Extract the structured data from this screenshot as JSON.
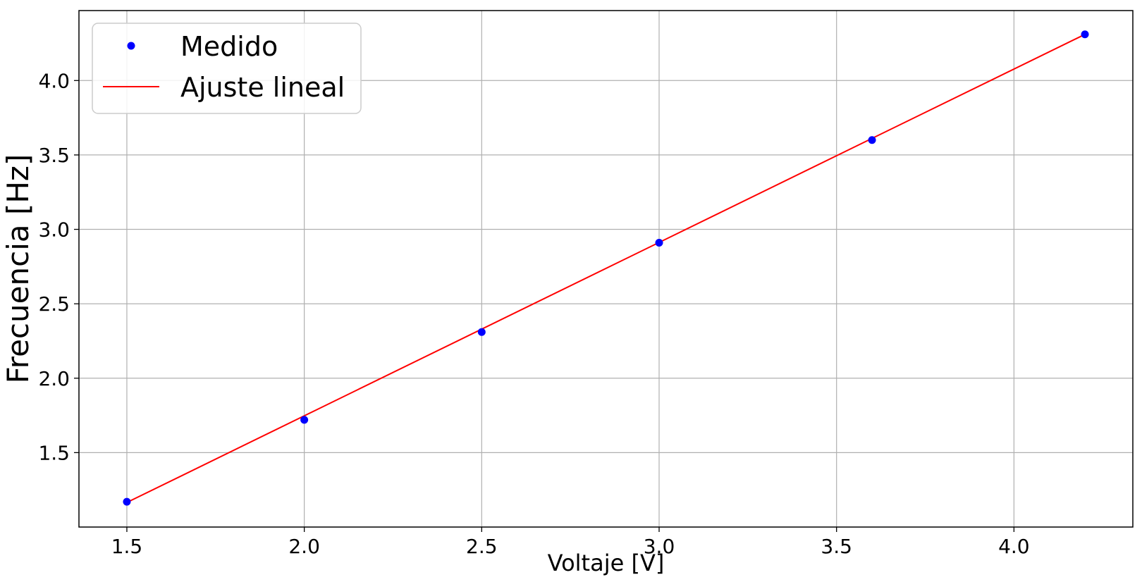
{
  "chart_data": {
    "type": "scatter",
    "title": "",
    "xlabel": "Voltaje [V]",
    "ylabel": "Frecuencia [Hz]",
    "xlim": [
      1.365,
      4.335
    ],
    "ylim": [
      1.0,
      4.47
    ],
    "x_ticks": [
      1.5,
      2.0,
      2.5,
      3.0,
      3.5,
      4.0
    ],
    "y_ticks": [
      1.5,
      2.0,
      2.5,
      3.0,
      3.5,
      4.0
    ],
    "x_tick_labels": [
      "1.5",
      "2.0",
      "2.5",
      "3.0",
      "3.5",
      "4.0"
    ],
    "y_tick_labels": [
      "1.5",
      "2.0",
      "2.5",
      "3.0",
      "3.5",
      "4.0"
    ],
    "grid": true,
    "legend_position": "top-left",
    "series": [
      {
        "name": "Medido",
        "kind": "points",
        "color": "#0000ff",
        "x": [
          1.5,
          2.0,
          2.5,
          3.0,
          3.6,
          4.2
        ],
        "y": [
          1.17,
          1.72,
          2.31,
          2.91,
          3.6,
          4.31
        ]
      },
      {
        "name": "Ajuste lineal",
        "kind": "line",
        "color": "#ff0000",
        "x": [
          1.5,
          4.2
        ],
        "y": [
          1.165,
          4.31
        ]
      }
    ]
  }
}
